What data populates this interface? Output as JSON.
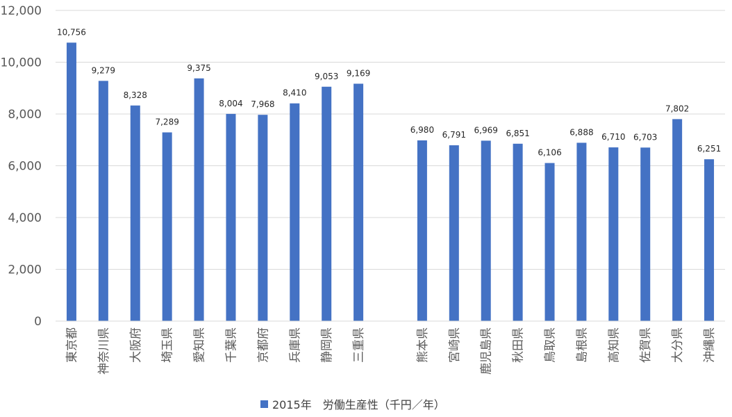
{
  "chart_data": {
    "type": "bar",
    "categories": [
      "東京都",
      "神奈川県",
      "大阪府",
      "埼玉県",
      "愛知県",
      "千葉県",
      "京都府",
      "兵庫県",
      "静岡県",
      "三重県",
      "",
      "熊本県",
      "宮崎県",
      "鹿児島県",
      "秋田県",
      "鳥取県",
      "島根県",
      "高知県",
      "佐賀県",
      "大分県",
      "沖縄県"
    ],
    "series": [
      {
        "name": "2015年　労働生産性（千円／年）",
        "values": [
          10756,
          9279,
          8328,
          7289,
          9375,
          8004,
          7968,
          8410,
          9053,
          9169,
          null,
          6980,
          6791,
          6969,
          6851,
          6106,
          6888,
          6710,
          6703,
          7802,
          6251
        ],
        "labels": [
          "10,756",
          "9,279",
          "8,328",
          "7,289",
          "9,375",
          "8,004",
          "7,968",
          "8,410",
          "9,053",
          "9,169",
          "",
          "6,980",
          "6,791",
          "6,969",
          "6,851",
          "6,106",
          "6,888",
          "6,710",
          "6,703",
          "7,802",
          "6,251"
        ],
        "color": "#4472C4"
      }
    ],
    "ylim": [
      0,
      12000
    ],
    "yticks": [
      0,
      2000,
      4000,
      6000,
      8000,
      10000,
      12000
    ],
    "ytick_labels": [
      "0",
      "2,000",
      "4,000",
      "6,000",
      "8,000",
      "10,000",
      "12,000"
    ],
    "grid": true,
    "legend_position": "bottom"
  }
}
